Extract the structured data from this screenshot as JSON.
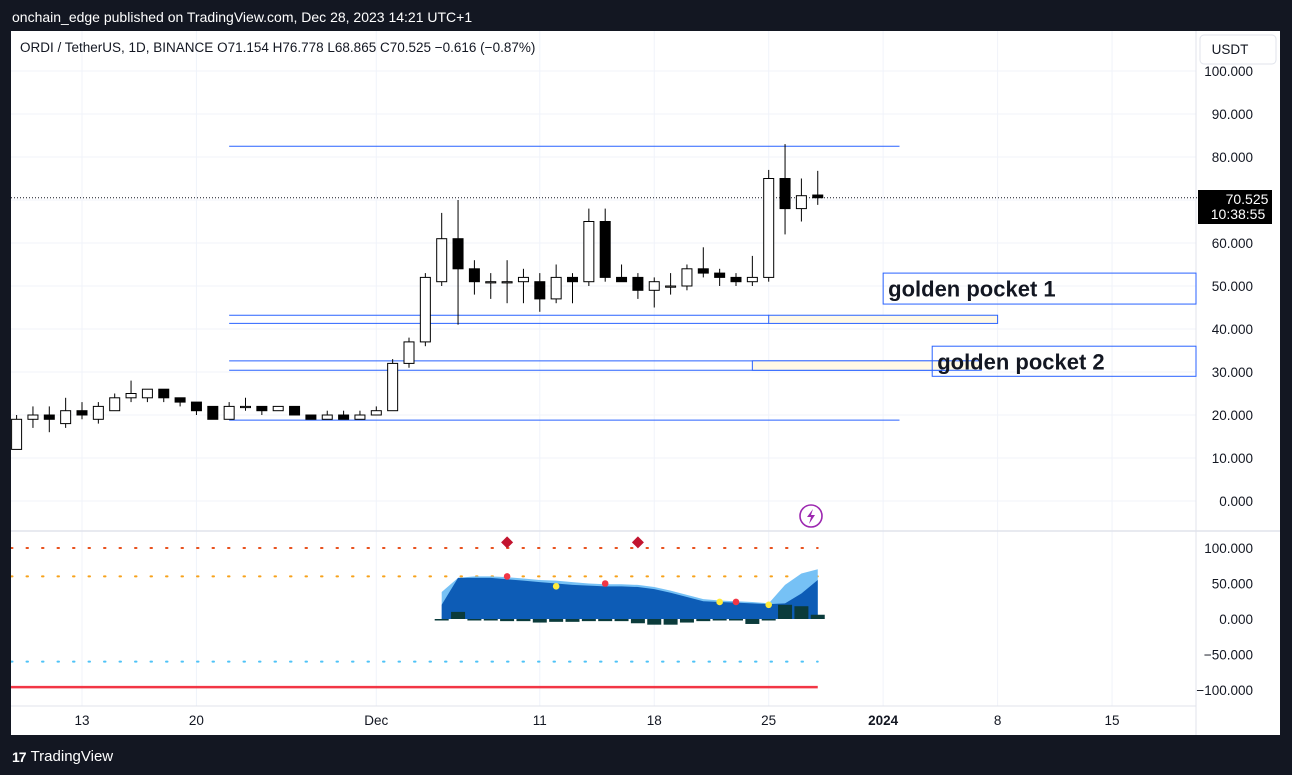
{
  "header": {
    "published": "onchain_edge published on TradingView.com, Dec 28, 2023 14:21 UTC+1"
  },
  "footer": {
    "brand": "TradingView"
  },
  "colors": {
    "up": "#ffffff",
    "down": "#000000",
    "line": "#2962ff",
    "price_label_bg": "#000000",
    "osc_dark": "#0d5cb6",
    "osc_light": "#76c1f5",
    "bar": "#0b3b3b",
    "red": "#f23645",
    "pocket_fill": "#fff9e6",
    "pocket_border": "#2962ff",
    "diamond": "#c2142f",
    "icon": "#9c27b0"
  },
  "chart_data": {
    "type": "candlestick",
    "title": "ORDI / TetherUS, 1D, BINANCE",
    "ohlc_label": {
      "o": "O71.154",
      "h": "H76.778",
      "l": "L68.865",
      "c": "C70.525",
      "chg": "−0.616 (−0.87%)"
    },
    "currency": "USDT",
    "ylim": [
      -6,
      105
    ],
    "y_ticks": [
      "100.000",
      "90.000",
      "80.000",
      "70.000",
      "60.000",
      "50.000",
      "40.000",
      "30.000",
      "20.000",
      "10.000",
      "0.000"
    ],
    "x_ticks": [
      {
        "date": "2023-11-13",
        "label": "13"
      },
      {
        "date": "2023-11-20",
        "label": "20"
      },
      {
        "date": "2023-12-01",
        "label": "Dec"
      },
      {
        "date": "2023-12-11",
        "label": "11"
      },
      {
        "date": "2023-12-18",
        "label": "18"
      },
      {
        "date": "2023-12-25",
        "label": "25"
      },
      {
        "date": "2024-01-01",
        "label": "2024"
      },
      {
        "date": "2024-01-08",
        "label": "8"
      },
      {
        "date": "2024-01-15",
        "label": "15"
      }
    ],
    "last_price": "70.525",
    "countdown": "10:38:55",
    "candles": [
      {
        "date": "2023-11-09",
        "o": 12,
        "h": 20,
        "l": 12,
        "c": 19
      },
      {
        "date": "2023-11-10",
        "o": 19,
        "h": 22,
        "l": 17,
        "c": 20
      },
      {
        "date": "2023-11-11",
        "o": 20,
        "h": 22,
        "l": 16,
        "c": 19
      },
      {
        "date": "2023-11-12",
        "o": 18,
        "h": 24,
        "l": 17,
        "c": 21
      },
      {
        "date": "2023-11-13",
        "o": 21,
        "h": 23,
        "l": 19,
        "c": 20
      },
      {
        "date": "2023-11-14",
        "o": 19,
        "h": 23,
        "l": 18,
        "c": 22
      },
      {
        "date": "2023-11-15",
        "o": 21,
        "h": 25,
        "l": 21,
        "c": 24
      },
      {
        "date": "2023-11-16",
        "o": 24,
        "h": 28,
        "l": 23,
        "c": 25
      },
      {
        "date": "2023-11-17",
        "o": 24,
        "h": 26,
        "l": 23,
        "c": 26
      },
      {
        "date": "2023-11-18",
        "o": 26,
        "h": 26,
        "l": 23,
        "c": 24
      },
      {
        "date": "2023-11-19",
        "o": 24,
        "h": 24,
        "l": 22,
        "c": 23
      },
      {
        "date": "2023-11-20",
        "o": 23,
        "h": 23,
        "l": 20,
        "c": 21
      },
      {
        "date": "2023-11-21",
        "o": 22,
        "h": 22,
        "l": 19,
        "c": 19
      },
      {
        "date": "2023-11-22",
        "o": 19,
        "h": 23,
        "l": 19,
        "c": 22
      },
      {
        "date": "2023-11-23",
        "o": 22,
        "h": 24,
        "l": 21,
        "c": 22
      },
      {
        "date": "2023-11-24",
        "o": 22,
        "h": 22,
        "l": 20,
        "c": 21
      },
      {
        "date": "2023-11-25",
        "o": 21,
        "h": 22,
        "l": 21,
        "c": 22
      },
      {
        "date": "2023-11-26",
        "o": 22,
        "h": 22,
        "l": 20,
        "c": 20
      },
      {
        "date": "2023-11-27",
        "o": 20,
        "h": 20,
        "l": 19,
        "c": 19
      },
      {
        "date": "2023-11-28",
        "o": 19,
        "h": 21,
        "l": 19,
        "c": 20
      },
      {
        "date": "2023-11-29",
        "o": 20,
        "h": 21,
        "l": 19,
        "c": 19
      },
      {
        "date": "2023-11-30",
        "o": 19,
        "h": 21,
        "l": 19,
        "c": 20
      },
      {
        "date": "2023-12-01",
        "o": 20,
        "h": 22,
        "l": 20,
        "c": 21
      },
      {
        "date": "2023-12-02",
        "o": 21,
        "h": 33,
        "l": 21,
        "c": 32
      },
      {
        "date": "2023-12-03",
        "o": 32,
        "h": 38,
        "l": 31,
        "c": 37
      },
      {
        "date": "2023-12-04",
        "o": 37,
        "h": 53,
        "l": 36,
        "c": 52
      },
      {
        "date": "2023-12-05",
        "o": 51,
        "h": 67,
        "l": 50,
        "c": 61
      },
      {
        "date": "2023-12-06",
        "o": 61,
        "h": 70,
        "l": 41,
        "c": 54
      },
      {
        "date": "2023-12-07",
        "o": 54,
        "h": 56,
        "l": 48,
        "c": 51
      },
      {
        "date": "2023-12-08",
        "o": 51,
        "h": 53,
        "l": 47,
        "c": 51
      },
      {
        "date": "2023-12-09",
        "o": 51,
        "h": 56,
        "l": 46,
        "c": 51
      },
      {
        "date": "2023-12-10",
        "o": 51,
        "h": 54,
        "l": 46,
        "c": 52
      },
      {
        "date": "2023-12-11",
        "o": 51,
        "h": 53,
        "l": 44,
        "c": 47
      },
      {
        "date": "2023-12-12",
        "o": 47,
        "h": 55,
        "l": 46,
        "c": 52
      },
      {
        "date": "2023-12-13",
        "o": 52,
        "h": 53,
        "l": 46,
        "c": 51
      },
      {
        "date": "2023-12-14",
        "o": 51,
        "h": 68,
        "l": 50,
        "c": 65
      },
      {
        "date": "2023-12-15",
        "o": 65,
        "h": 68,
        "l": 51,
        "c": 52
      },
      {
        "date": "2023-12-16",
        "o": 52,
        "h": 55,
        "l": 51,
        "c": 51
      },
      {
        "date": "2023-12-17",
        "o": 52,
        "h": 53,
        "l": 47,
        "c": 49
      },
      {
        "date": "2023-12-18",
        "o": 49,
        "h": 52,
        "l": 45,
        "c": 51
      },
      {
        "date": "2023-12-19",
        "o": 50,
        "h": 53,
        "l": 48,
        "c": 50
      },
      {
        "date": "2023-12-20",
        "o": 50,
        "h": 55,
        "l": 49,
        "c": 54
      },
      {
        "date": "2023-12-21",
        "o": 54,
        "h": 59,
        "l": 52,
        "c": 53
      },
      {
        "date": "2023-12-22",
        "o": 53,
        "h": 54,
        "l": 50,
        "c": 52
      },
      {
        "date": "2023-12-23",
        "o": 52,
        "h": 53,
        "l": 50,
        "c": 51
      },
      {
        "date": "2023-12-24",
        "o": 51,
        "h": 57,
        "l": 50,
        "c": 52
      },
      {
        "date": "2023-12-25",
        "o": 52,
        "h": 77,
        "l": 51,
        "c": 75
      },
      {
        "date": "2023-12-26",
        "o": 75,
        "h": 83,
        "l": 62,
        "c": 68
      },
      {
        "date": "2023-12-27",
        "o": 68,
        "h": 75,
        "l": 65,
        "c": 71
      },
      {
        "date": "2023-12-28",
        "o": 71.154,
        "h": 76.778,
        "l": 68.865,
        "c": 70.525
      }
    ],
    "horizontal_lines": [
      {
        "y": 82.5,
        "from": "2023-11-22",
        "to": "2024-01-02"
      },
      {
        "y": 43.2,
        "from": "2023-11-22",
        "to": "2023-12-25"
      },
      {
        "y": 41.3,
        "from": "2023-11-22",
        "to": "2023-12-25"
      },
      {
        "y": 32.6,
        "from": "2023-11-22",
        "to": "2024-01-05"
      },
      {
        "y": 30.4,
        "from": "2023-11-22",
        "to": "2024-01-05"
      },
      {
        "y": 18.8,
        "from": "2023-11-22",
        "to": "2024-01-02"
      }
    ],
    "zones": [
      {
        "y1": 41.3,
        "y2": 43.2,
        "from": "2023-12-25",
        "to": "2024-01-08"
      },
      {
        "y1": 30.4,
        "y2": 32.6,
        "from": "2023-12-24",
        "to": "2024-01-07"
      }
    ],
    "annotations": [
      {
        "text": "golden pocket 1",
        "y1": 45.8,
        "y2": 53.0,
        "from": "2024-01-01"
      },
      {
        "text": "golden pocket 2",
        "y1": 29.0,
        "y2": 36.0,
        "from": "2024-01-04"
      }
    ],
    "oscillator": {
      "ylim": [
        -110,
        115
      ],
      "y_ticks": [
        "100.000",
        "50.000",
        "0.000",
        "−50.000",
        "−100.000"
      ],
      "dotted_levels": [
        {
          "y": 100,
          "color": "#e8511d"
        },
        {
          "y": 60,
          "color": "#f7a21b"
        },
        {
          "y": -60,
          "color": "#4fc3f7"
        }
      ],
      "solid_level": {
        "y": -96,
        "color": "#f23645"
      },
      "wave": {
        "from": "2023-12-05",
        "to": "2023-12-28",
        "upper": [
          38,
          58,
          60,
          60,
          59,
          57,
          55,
          54,
          52,
          50,
          49,
          49,
          48,
          45,
          40,
          34,
          28,
          26,
          25,
          24,
          22,
          48,
          64,
          70
        ],
        "lower": [
          20,
          58,
          58,
          58,
          56,
          54,
          52,
          50,
          48,
          47,
          46,
          46,
          45,
          42,
          37,
          31,
          25,
          24,
          23,
          22,
          21,
          22,
          36,
          55
        ]
      },
      "bars": [
        0,
        10,
        -2,
        -2,
        -3,
        -3,
        -5,
        -4,
        -4,
        -3,
        -3,
        -3,
        -6,
        -8,
        -8,
        -5,
        -3,
        -2,
        -2,
        -7,
        0,
        20,
        18,
        6
      ],
      "dots": [
        {
          "date": "2023-12-09",
          "y": 60,
          "color": "#f23645"
        },
        {
          "date": "2023-12-12",
          "y": 46,
          "color": "#ffeb3b"
        },
        {
          "date": "2023-12-15",
          "y": 50,
          "color": "#f23645"
        },
        {
          "date": "2023-12-22",
          "y": 24,
          "color": "#ffeb3b"
        },
        {
          "date": "2023-12-23",
          "y": 24,
          "color": "#f23645"
        },
        {
          "date": "2023-12-25",
          "y": 20,
          "color": "#ffeb3b"
        }
      ],
      "diamonds": [
        {
          "date": "2023-12-09",
          "y": 108
        },
        {
          "date": "2023-12-17",
          "y": 108
        }
      ]
    }
  }
}
